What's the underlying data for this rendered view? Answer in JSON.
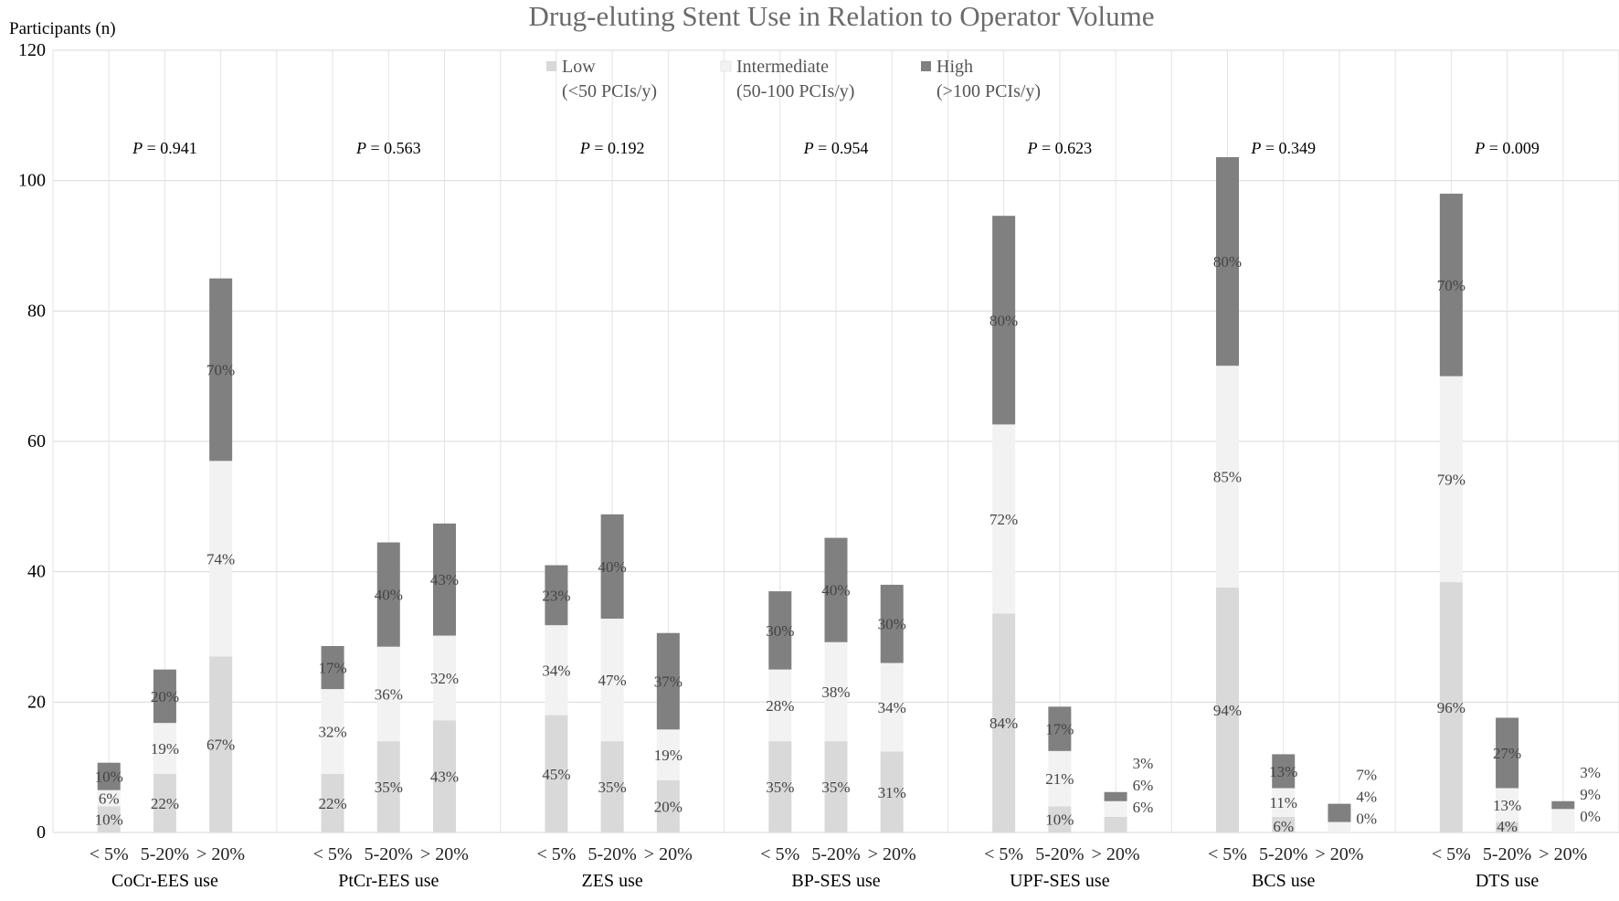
{
  "chart_data": {
    "type": "bar",
    "stacked": true,
    "title": "Drug-eluting Stent Use in Relation to Operator Volume",
    "ylabel": "Participants (n)",
    "ylim": [
      0,
      120
    ],
    "yticks": [
      0,
      20,
      40,
      60,
      80,
      100,
      120
    ],
    "grid": true,
    "legend_position": "top-center",
    "subcategories": [
      "< 5%",
      "5-20%",
      "> 20%"
    ],
    "p_prefix": "P",
    "series": [
      {
        "name": "Low",
        "name_line2": "(<50 PCIs/y)",
        "color": "#d9d9d9"
      },
      {
        "name": "Intermediate",
        "name_line2": "(50-100 PCIs/y)",
        "color": "#f2f2f2"
      },
      {
        "name": "High",
        "name_line2": "(>100 PCIs/y)",
        "color": "#808080"
      }
    ],
    "groups": [
      {
        "name": "CoCr-EES use",
        "p_value": "= 0.941",
        "bars": [
          {
            "values": [
              4,
              2.5,
              4.2
            ],
            "labels": [
              "10%",
              "6%",
              "10%"
            ]
          },
          {
            "values": [
              9,
              7.8,
              8.2
            ],
            "labels": [
              "22%",
              "19%",
              "20%"
            ]
          },
          {
            "values": [
              27,
              30,
              28
            ],
            "labels": [
              "67%",
              "74%",
              "70%"
            ]
          }
        ]
      },
      {
        "name": "PtCr-EES use",
        "p_value": "= 0.563",
        "bars": [
          {
            "values": [
              9,
              13,
              6.6
            ],
            "labels": [
              "22%",
              "32%",
              "17%"
            ]
          },
          {
            "values": [
              14,
              14.5,
              16
            ],
            "labels": [
              "35%",
              "36%",
              "40%"
            ]
          },
          {
            "values": [
              17.2,
              13,
              17.2
            ],
            "labels": [
              "43%",
              "32%",
              "43%"
            ]
          }
        ]
      },
      {
        "name": "ZES use",
        "p_value": "= 0.192",
        "bars": [
          {
            "values": [
              18,
              13.8,
              9.2
            ],
            "labels": [
              "45%",
              "34%",
              "23%"
            ]
          },
          {
            "values": [
              14,
              18.8,
              16
            ],
            "labels": [
              "35%",
              "47%",
              "40%"
            ]
          },
          {
            "values": [
              8,
              7.8,
              14.8
            ],
            "labels": [
              "20%",
              "19%",
              "37%"
            ]
          }
        ]
      },
      {
        "name": "BP-SES use",
        "p_value": "= 0.954",
        "bars": [
          {
            "values": [
              14,
              11,
              12
            ],
            "labels": [
              "35%",
              "28%",
              "30%"
            ]
          },
          {
            "values": [
              14,
              15.2,
              16
            ],
            "labels": [
              "35%",
              "38%",
              "40%"
            ]
          },
          {
            "values": [
              12.4,
              13.6,
              12
            ],
            "labels": [
              "31%",
              "34%",
              "30%"
            ]
          }
        ]
      },
      {
        "name": "UPF-SES use",
        "p_value": "= 0.623",
        "bars": [
          {
            "values": [
              33.6,
              29,
              32
            ],
            "labels": [
              "84%",
              "72%",
              "80%"
            ]
          },
          {
            "values": [
              4,
              8.5,
              6.8
            ],
            "labels": [
              "10%",
              "21%",
              "17%"
            ]
          },
          {
            "values": [
              2.4,
              2.4,
              1.4
            ],
            "labels": [
              "6%",
              "6%",
              "3%"
            ]
          }
        ]
      },
      {
        "name": "BCS use",
        "p_value": "= 0.349",
        "bars": [
          {
            "values": [
              37.6,
              34,
              32
            ],
            "labels": [
              "94%",
              "85%",
              "80%"
            ]
          },
          {
            "values": [
              2.4,
              4.4,
              5.2
            ],
            "labels": [
              "6%",
              "11%",
              "13%"
            ]
          },
          {
            "values": [
              0,
              1.6,
              2.8
            ],
            "labels": [
              "0%",
              "4%",
              "7%"
            ]
          }
        ]
      },
      {
        "name": "DTS use",
        "p_value": "= 0.009",
        "bars": [
          {
            "values": [
              38.4,
              31.6,
              28
            ],
            "labels": [
              "96%",
              "79%",
              "70%"
            ]
          },
          {
            "values": [
              1.6,
              5.2,
              10.8
            ],
            "labels": [
              "4%",
              "13%",
              "27%"
            ]
          },
          {
            "values": [
              0,
              3.6,
              1.2
            ],
            "labels": [
              "0%",
              "9%",
              "3%"
            ]
          }
        ]
      }
    ]
  }
}
